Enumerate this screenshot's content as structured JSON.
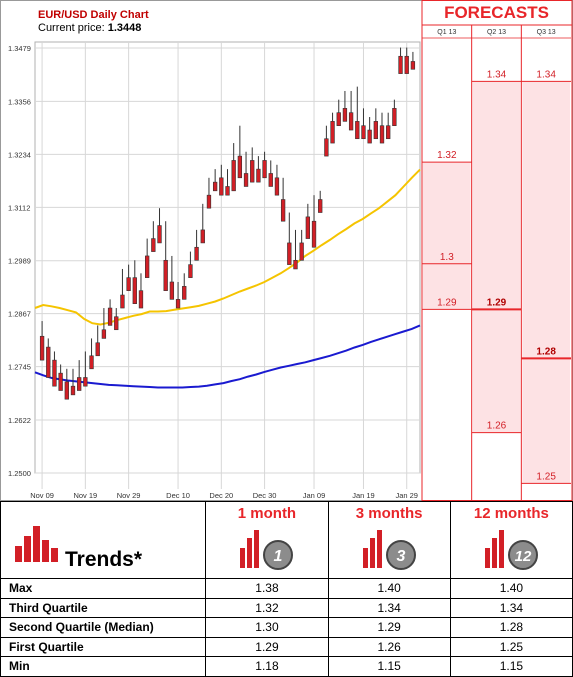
{
  "chart": {
    "title": "EUR/USD Daily Chart",
    "price_label": "Current price:",
    "price_value": "1.3448"
  },
  "chart_data": {
    "type": "candlestick",
    "ylim": [
      1.25,
      1.3479
    ],
    "y_ticks": [
      "1.3479",
      "1.3356",
      "1.3234",
      "1.3112",
      "1.2989",
      "1.2867",
      "1.2745",
      "1.2622",
      "1.2500"
    ],
    "x_ticks": [
      "Nov 09",
      "Nov 19",
      "Nov 29",
      "Dec 10",
      "Dec 20",
      "Dec 30",
      "Jan 09",
      "Jan 19",
      "Jan 29"
    ],
    "grid": true,
    "candles": [
      [
        1.2815,
        1.285,
        1.279,
        1.276
      ],
      [
        1.279,
        1.281,
        1.273,
        1.272
      ],
      [
        1.276,
        1.278,
        1.272,
        1.27
      ],
      [
        1.273,
        1.275,
        1.27,
        1.269
      ],
      [
        1.271,
        1.274,
        1.269,
        1.267
      ],
      [
        1.27,
        1.274,
        1.269,
        1.268
      ],
      [
        1.272,
        1.276,
        1.27,
        1.269
      ],
      [
        1.272,
        1.278,
        1.271,
        1.27
      ],
      [
        1.277,
        1.281,
        1.275,
        1.274
      ],
      [
        1.28,
        1.284,
        1.278,
        1.277
      ],
      [
        1.283,
        1.288,
        1.282,
        1.281
      ],
      [
        1.288,
        1.29,
        1.286,
        1.284
      ],
      [
        1.286,
        1.288,
        1.285,
        1.283
      ],
      [
        1.291,
        1.297,
        1.289,
        1.288
      ],
      [
        1.295,
        1.298,
        1.294,
        1.292
      ],
      [
        1.295,
        1.299,
        1.29,
        1.289
      ],
      [
        1.292,
        1.296,
        1.289,
        1.288
      ],
      [
        1.3,
        1.304,
        1.296,
        1.295
      ],
      [
        1.304,
        1.308,
        1.303,
        1.301
      ],
      [
        1.307,
        1.311,
        1.305,
        1.303
      ],
      [
        1.299,
        1.308,
        1.295,
        1.292
      ],
      [
        1.294,
        1.3,
        1.292,
        1.29
      ],
      [
        1.29,
        1.294,
        1.288,
        1.288
      ],
      [
        1.293,
        1.296,
        1.292,
        1.29
      ],
      [
        1.298,
        1.301,
        1.296,
        1.295
      ],
      [
        1.302,
        1.306,
        1.3,
        1.299
      ],
      [
        1.306,
        1.312,
        1.304,
        1.303
      ],
      [
        1.314,
        1.318,
        1.312,
        1.311
      ],
      [
        1.317,
        1.32,
        1.316,
        1.315
      ],
      [
        1.318,
        1.321,
        1.315,
        1.314
      ],
      [
        1.316,
        1.32,
        1.315,
        1.314
      ],
      [
        1.322,
        1.326,
        1.318,
        1.315
      ],
      [
        1.323,
        1.33,
        1.32,
        1.318
      ],
      [
        1.319,
        1.324,
        1.317,
        1.316
      ],
      [
        1.322,
        1.325,
        1.318,
        1.317
      ],
      [
        1.32,
        1.323,
        1.318,
        1.317
      ],
      [
        1.322,
        1.324,
        1.319,
        1.318
      ],
      [
        1.319,
        1.322,
        1.317,
        1.316
      ],
      [
        1.318,
        1.321,
        1.315,
        1.314
      ],
      [
        1.313,
        1.318,
        1.31,
        1.308
      ],
      [
        1.303,
        1.31,
        1.299,
        1.298
      ],
      [
        1.299,
        1.306,
        1.298,
        1.297
      ],
      [
        1.303,
        1.306,
        1.3,
        1.299
      ],
      [
        1.309,
        1.312,
        1.306,
        1.304
      ],
      [
        1.308,
        1.314,
        1.304,
        1.302
      ],
      [
        1.313,
        1.315,
        1.312,
        1.31
      ],
      [
        1.327,
        1.33,
        1.325,
        1.323
      ],
      [
        1.331,
        1.333,
        1.329,
        1.326
      ],
      [
        1.333,
        1.336,
        1.331,
        1.33
      ],
      [
        1.334,
        1.338,
        1.333,
        1.331
      ],
      [
        1.333,
        1.338,
        1.331,
        1.329
      ],
      [
        1.331,
        1.339,
        1.328,
        1.327
      ],
      [
        1.33,
        1.334,
        1.328,
        1.327
      ],
      [
        1.329,
        1.332,
        1.327,
        1.326
      ],
      [
        1.331,
        1.334,
        1.328,
        1.327
      ],
      [
        1.33,
        1.333,
        1.327,
        1.326
      ],
      [
        1.33,
        1.333,
        1.328,
        1.327
      ],
      [
        1.334,
        1.336,
        1.332,
        1.33
      ],
      [
        1.346,
        1.348,
        1.344,
        1.342
      ],
      [
        1.346,
        1.348,
        1.343,
        1.342
      ],
      [
        1.3448,
        1.347,
        1.344,
        1.343
      ]
    ],
    "ma_short": [
      1.288,
      1.2887,
      1.2884,
      1.288,
      1.2875,
      1.287,
      1.2855,
      1.2845,
      1.2842,
      1.2846,
      1.2852,
      1.2857,
      1.2862,
      1.2866,
      1.2872,
      1.2872,
      1.2873,
      1.2876,
      1.2879,
      1.2882,
      1.2885,
      1.289,
      1.2895,
      1.2902,
      1.291,
      1.2918,
      1.2925,
      1.2932,
      1.294,
      1.295,
      1.296,
      1.2972,
      1.2985,
      1.3,
      1.3012,
      1.3025,
      1.3037,
      1.305,
      1.3062,
      1.3075,
      1.3085,
      1.3098,
      1.311,
      1.3125,
      1.314,
      1.316,
      1.318,
      1.3199
    ],
    "ma_long": [
      1.2732,
      1.2725,
      1.2719,
      1.2716,
      1.2713,
      1.2711,
      1.2709,
      1.2707,
      1.2705,
      1.2703,
      1.2702,
      1.2701,
      1.27,
      1.2699,
      1.2698,
      1.2697,
      1.2697,
      1.2697,
      1.2697,
      1.2698,
      1.2699,
      1.2701,
      1.2704,
      1.2707,
      1.2712,
      1.2716,
      1.2722,
      1.2727,
      1.2733,
      1.2738,
      1.2743,
      1.2747,
      1.2751,
      1.2755,
      1.276,
      1.2765,
      1.277,
      1.2776,
      1.2782,
      1.2789,
      1.2795,
      1.2802,
      1.2808,
      1.2814,
      1.282,
      1.2826,
      1.2832,
      1.284
    ]
  },
  "forecasts": {
    "title": "FORECASTS",
    "range": [
      1.25,
      1.3479
    ],
    "columns": [
      {
        "header": "Q1 13",
        "levels": [
          {
            "text": "1.32",
            "value": 1.3216,
            "bold": false
          },
          {
            "text": "1.3",
            "value": 1.2982,
            "bold": false
          },
          {
            "text": "1.29",
            "value": 1.2877,
            "bold": false
          }
        ]
      },
      {
        "header": "Q2 13",
        "levels": [
          {
            "text": "1.34",
            "value": 1.3402,
            "bold": false
          },
          {
            "text": "1.29",
            "value": 1.2877,
            "bold": true
          },
          {
            "text": "1.26",
            "value": 1.2593,
            "bold": false
          }
        ]
      },
      {
        "header": "Q3 13",
        "levels": [
          {
            "text": "1.34",
            "value": 1.3402,
            "bold": false
          },
          {
            "text": "1.28",
            "value": 1.2764,
            "bold": true
          },
          {
            "text": "1.25",
            "value": 1.2476,
            "bold": false
          }
        ]
      }
    ],
    "colors": {
      "accent": "#e8262a",
      "band": "#fde2e4",
      "text": "#d21f26"
    }
  },
  "trends": {
    "title": "Trends*",
    "headers": [
      "1 month",
      "3 months",
      "12 months"
    ],
    "icon_numbers": [
      "1",
      "3",
      "12"
    ],
    "rows": [
      {
        "label": "Max",
        "values": [
          "1.38",
          "1.40",
          "1.40"
        ]
      },
      {
        "label": "Third Quartile",
        "values": [
          "1.32",
          "1.34",
          "1.34"
        ]
      },
      {
        "label": "Second Quartile (Median)",
        "values": [
          "1.30",
          "1.29",
          "1.28"
        ]
      },
      {
        "label": "First Quartile",
        "values": [
          "1.29",
          "1.26",
          "1.25"
        ]
      },
      {
        "label": "Min",
        "values": [
          "1.18",
          "1.15",
          "1.15"
        ]
      }
    ]
  }
}
